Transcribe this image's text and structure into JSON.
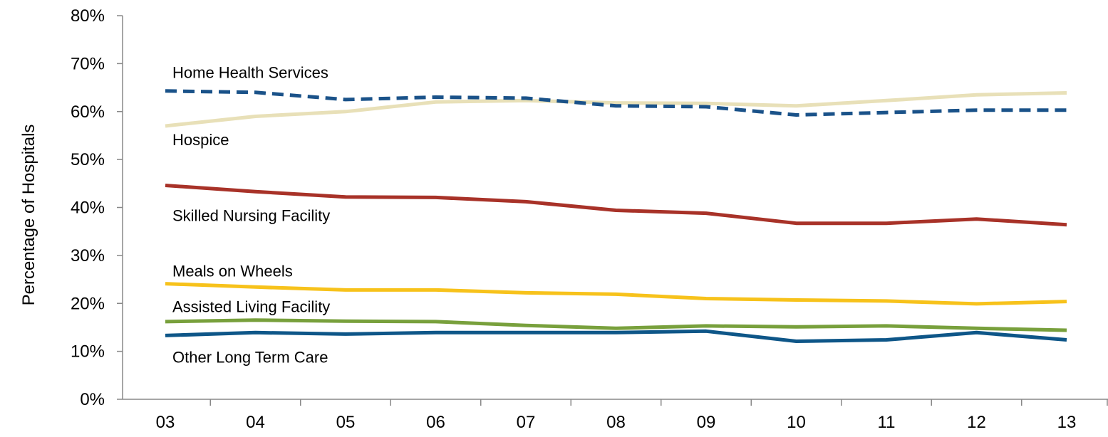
{
  "chart_data": {
    "type": "line",
    "title": "",
    "xlabel": "",
    "ylabel": "Percentage  of Hospitals",
    "categories": [
      "03",
      "04",
      "05",
      "06",
      "07",
      "08",
      "09",
      "10",
      "11",
      "12",
      "13"
    ],
    "y_ticks": [
      "0%",
      "10%",
      "20%",
      "30%",
      "40%",
      "50%",
      "60%",
      "70%",
      "80%"
    ],
    "ylim": [
      0,
      80
    ],
    "grid": false,
    "legend": "inline labels",
    "series": [
      {
        "name": "Home Health Services",
        "color": "#e8e0b8",
        "style": "solid",
        "values": [
          57,
          59,
          60,
          62,
          62.3,
          61.8,
          61.7,
          61.2,
          62.3,
          63.5,
          63.9
        ]
      },
      {
        "name": "Hospice",
        "color": "#1a5289",
        "style": "dashed",
        "values": [
          64.3,
          64,
          62.5,
          63,
          62.8,
          61.2,
          61,
          59.3,
          59.8,
          60.3,
          60.3
        ]
      },
      {
        "name": "Skilled Nursing Facility",
        "color": "#a83228",
        "style": "solid",
        "values": [
          44.6,
          43.3,
          42.2,
          42.1,
          41.2,
          39.4,
          38.8,
          36.7,
          36.7,
          37.6,
          36.4
        ]
      },
      {
        "name": "Meals on Wheels",
        "color": "#f7c21b",
        "style": "solid",
        "values": [
          24.1,
          23.4,
          22.8,
          22.8,
          22.2,
          21.9,
          21,
          20.7,
          20.5,
          19.9,
          20.4
        ]
      },
      {
        "name": "Assisted Living Facility",
        "color": "#78a03c",
        "style": "solid",
        "values": [
          16.2,
          16.5,
          16.3,
          16.2,
          15.4,
          14.8,
          15.3,
          15.1,
          15.3,
          14.8,
          14.4
        ]
      },
      {
        "name": "Other Long Term Care",
        "color": "#0e5688",
        "style": "solid",
        "values": [
          13.3,
          13.9,
          13.6,
          13.9,
          13.9,
          13.9,
          14.2,
          12.1,
          12.4,
          13.9,
          12.4
        ]
      }
    ]
  }
}
